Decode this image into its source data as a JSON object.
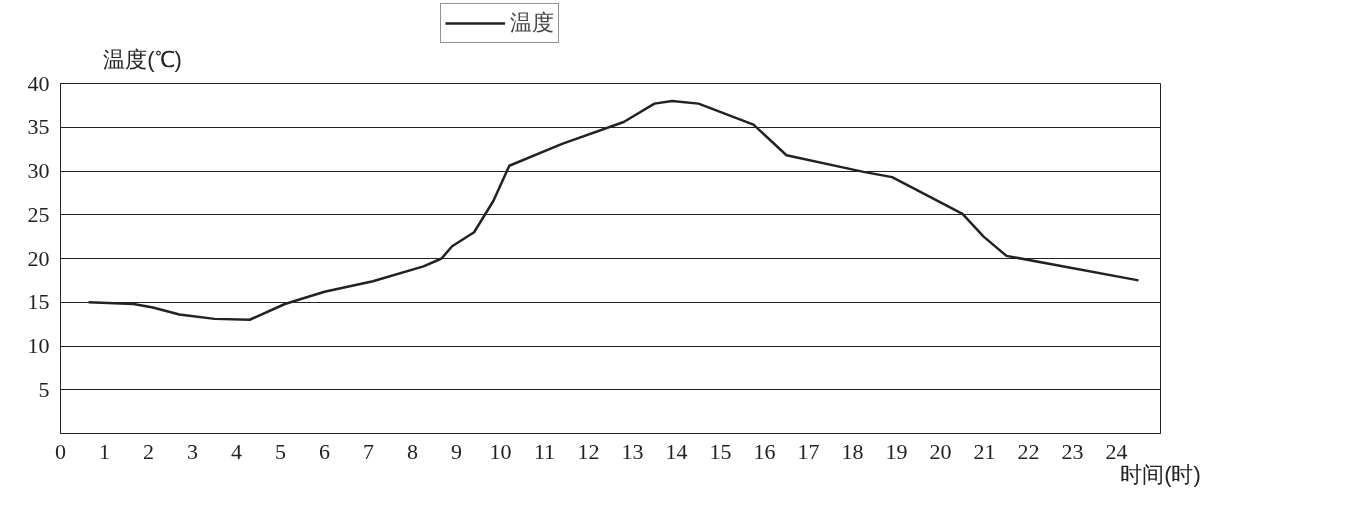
{
  "chart_data": {
    "type": "line",
    "xlabel": "时间(时)",
    "ylabel": "温度(℃)",
    "x": [
      0.64,
      1.66,
      2.1,
      2.7,
      3.5,
      4.3,
      5.1,
      6.0,
      7.1,
      8.25,
      8.66,
      8.9,
      9.4,
      9.84,
      10.2,
      11.4,
      12.8,
      13.5,
      13.9,
      14.5,
      15.75,
      16.5,
      18.25,
      18.9,
      20.5,
      20.98,
      21.5,
      24.5
    ],
    "series": [
      {
        "name": "温度",
        "color": "#222222",
        "values": [
          15.0,
          14.8,
          14.4,
          13.6,
          13.1,
          13.0,
          14.8,
          16.2,
          17.4,
          19.1,
          20.0,
          21.4,
          23.0,
          26.6,
          30.6,
          33.1,
          35.6,
          37.7,
          38.0,
          37.7,
          35.3,
          31.8,
          29.9,
          29.3,
          25.1,
          22.5,
          20.3,
          17.5
        ]
      }
    ],
    "xlim": [
      0,
      25
    ],
    "ylim": [
      0,
      40
    ],
    "xticks": [
      0,
      1,
      2,
      3,
      4,
      5,
      6,
      7,
      8,
      9,
      10,
      11,
      12,
      13,
      14,
      15,
      16,
      17,
      18,
      19,
      20,
      21,
      22,
      23,
      24
    ],
    "yticks": [
      5,
      10,
      15,
      20,
      25,
      30,
      35,
      40
    ],
    "grid": "y",
    "legend": "top",
    "line_style": "solid"
  }
}
